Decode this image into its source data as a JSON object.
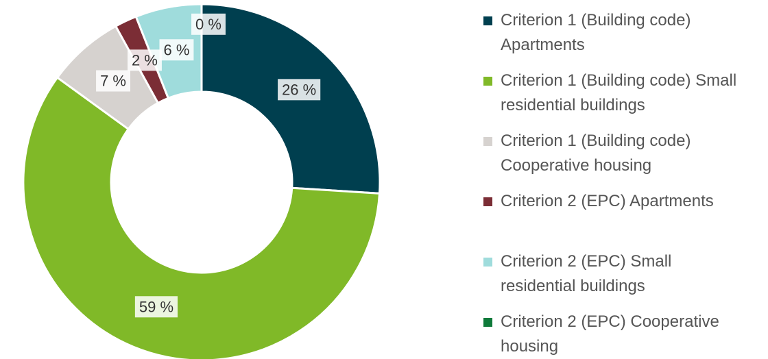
{
  "chart_data": {
    "type": "donut",
    "categories": [
      "Criterion 1 (Building code) Apartments",
      "Criterion 1 (Building code) Small residential buildings",
      "Criterion 1 (Building code) Cooperative housing",
      "Criterion 2 (EPC) Apartments",
      "Criterion 2 (EPC) Small residential buildings",
      "Criterion 2 (EPC) Cooperative housing"
    ],
    "values": [
      26,
      59,
      7,
      2,
      6,
      0
    ],
    "value_labels": [
      "26 %",
      "59 %",
      "7 %",
      "2 %",
      "6 %",
      "0 %"
    ],
    "colors": [
      "#003f4f",
      "#80b928",
      "#d6d2cf",
      "#7b2d35",
      "#9fdcdc",
      "#0f7a3a"
    ],
    "legend": "right"
  }
}
